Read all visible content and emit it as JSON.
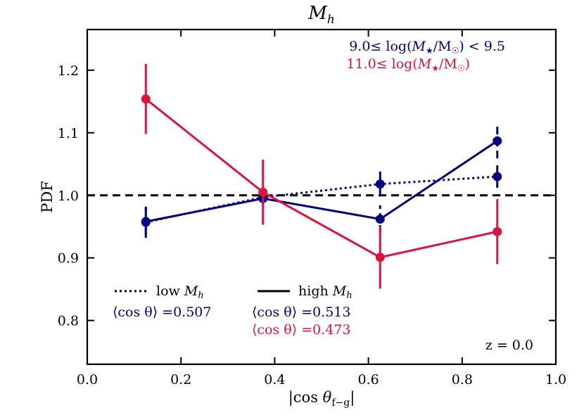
{
  "chart_data": {
    "type": "line",
    "title": "M_h",
    "xlabel": "|cos θ_f−g|",
    "ylabel": "PDF",
    "xlim": [
      0.0,
      1.0
    ],
    "ylim": [
      0.73,
      1.265
    ],
    "x_ticks": [
      0.0,
      0.2,
      0.4,
      0.6,
      0.8,
      1.0
    ],
    "x_tick_labels": [
      "0.0",
      "0.2",
      "0.4",
      "0.6",
      "0.8",
      "1.0"
    ],
    "y_ticks": [
      0.8,
      0.9,
      1.0,
      1.1,
      1.2
    ],
    "y_tick_labels": [
      "0.8",
      "0.9",
      "1.0",
      "1.1",
      "1.2"
    ],
    "reference_line": {
      "y": 1.0,
      "style": "dashed",
      "color": "#000000"
    },
    "x": [
      0.125,
      0.375,
      0.625,
      0.875
    ],
    "series": [
      {
        "name": "9.0≤ log(M★/M☉) < 9.5 — low M_h",
        "color": "#000080",
        "linestyle": "dotted",
        "values": [
          0.957,
          0.997,
          1.018,
          1.03
        ],
        "errors": [
          0.025,
          0.015,
          0.02,
          0.018
        ]
      },
      {
        "name": "9.0≤ log(M★/M☉) < 9.5 — high M_h",
        "color": "#000080",
        "linestyle": "solid",
        "values": [
          0.958,
          0.995,
          0.962,
          1.087
        ],
        "errors": [
          0.022,
          0.01,
          0.022,
          0.028
        ]
      },
      {
        "name": "11.0≤ log(M★/M☉) — high M_h",
        "color": "#dc143c",
        "linestyle": "solid",
        "values": [
          1.154,
          1.005,
          0.901,
          0.942
        ],
        "errors": [
          0.056,
          0.052,
          0.05,
          0.052
        ]
      }
    ],
    "legend_top": {
      "position": "top-right",
      "entries": [
        {
          "label": "9.0≤ log(M★/M☉) < 9.5",
          "color": "#000080"
        },
        {
          "label": "11.0≤ log(M★/M☉)",
          "color": "#dc143c"
        }
      ]
    },
    "legend_style": {
      "position": "bottom-left",
      "low": {
        "label": "low M_h",
        "linestyle": "dotted"
      },
      "high": {
        "label": "high M_h",
        "linestyle": "solid"
      }
    },
    "annotations": {
      "mean_cos_low": {
        "text": "⟨cos θ⟩ =0.507",
        "color": "#000080"
      },
      "mean_cos_high": [
        {
          "text": "⟨cos θ⟩ =0.513",
          "color": "#000080"
        },
        {
          "text": "⟨cos θ⟩ =0.473",
          "color": "#dc143c"
        }
      ],
      "redshift": "z = 0.0"
    }
  }
}
